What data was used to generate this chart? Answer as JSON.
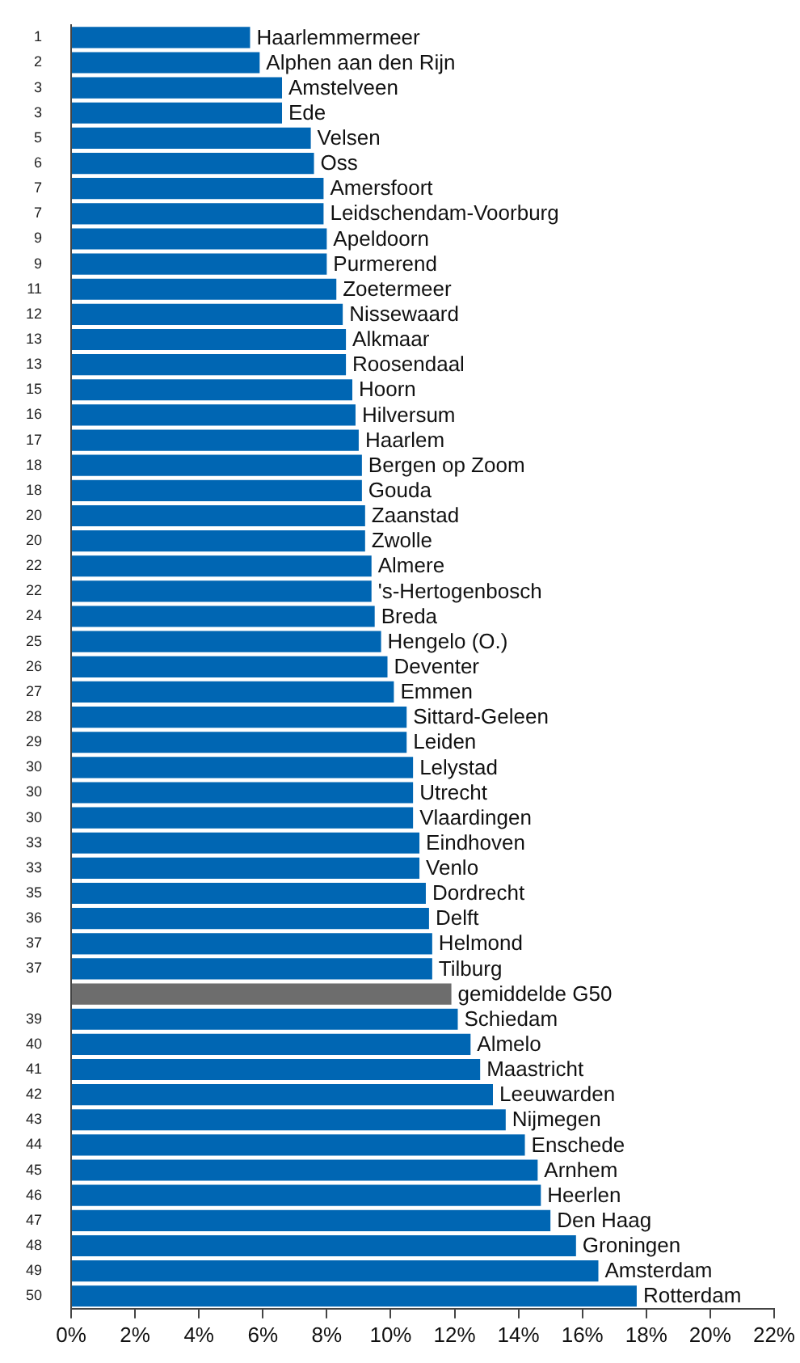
{
  "chart_data": {
    "type": "bar",
    "orientation": "horizontal",
    "categories": [
      "1",
      "2",
      "3",
      "3",
      "5",
      "6",
      "7",
      "7",
      "9",
      "9",
      "11",
      "12",
      "13",
      "13",
      "15",
      "16",
      "17",
      "18",
      "18",
      "20",
      "20",
      "22",
      "22",
      "24",
      "25",
      "26",
      "27",
      "28",
      "29",
      "30",
      "30",
      "30",
      "33",
      "33",
      "35",
      "36",
      "37",
      "37",
      null,
      "39",
      "40",
      "41",
      "42",
      "43",
      "44",
      "45",
      "46",
      "47",
      "48",
      "49",
      "50"
    ],
    "values": [
      5.6,
      5.9,
      6.6,
      6.6,
      7.5,
      7.6,
      7.9,
      7.9,
      8.0,
      8.0,
      8.3,
      8.5,
      8.6,
      8.6,
      8.8,
      8.9,
      9.0,
      9.1,
      9.1,
      9.2,
      9.2,
      9.4,
      9.4,
      9.5,
      9.7,
      9.9,
      10.1,
      10.5,
      10.5,
      10.7,
      10.7,
      10.7,
      10.9,
      10.9,
      11.1,
      11.2,
      11.3,
      11.3,
      11.9,
      12.1,
      12.5,
      12.8,
      13.2,
      13.6,
      14.2,
      14.6,
      14.7,
      15.0,
      15.8,
      16.5,
      17.7
    ],
    "value_labels": [
      "Haarlemmermeer",
      "Alphen aan den Rijn",
      "Amstelveen",
      "Ede",
      "Velsen",
      "Oss",
      "Amersfoort",
      "Leidschendam-Voorburg",
      "Apeldoorn",
      "Purmerend",
      "Zoetermeer",
      "Nissewaard",
      "Alkmaar",
      "Roosendaal",
      "Hoorn",
      "Hilversum",
      "Haarlem",
      "Bergen op Zoom",
      "Gouda",
      "Zaanstad",
      "Zwolle",
      "Almere",
      "'s-Hertogenbosch",
      "Breda",
      "Hengelo (O.)",
      "Deventer",
      "Emmen",
      "Sittard-Geleen",
      "Leiden",
      "Lelystad",
      "Utrecht",
      "Vlaardingen",
      "Eindhoven",
      "Venlo",
      "Dordrecht",
      "Delft",
      "Helmond",
      "Tilburg",
      "gemiddelde G50",
      "Schiedam",
      "Almelo",
      "Maastricht",
      "Leeuwarden",
      "Nijmegen",
      "Enschede",
      "Arnhem",
      "Heerlen",
      "Den Haag",
      "Groningen",
      "Amsterdam",
      "Rotterdam"
    ],
    "colors": [
      "#0066b3",
      "#0066b3",
      "#0066b3",
      "#0066b3",
      "#0066b3",
      "#0066b3",
      "#0066b3",
      "#0066b3",
      "#0066b3",
      "#0066b3",
      "#0066b3",
      "#0066b3",
      "#0066b3",
      "#0066b3",
      "#0066b3",
      "#0066b3",
      "#0066b3",
      "#0066b3",
      "#0066b3",
      "#0066b3",
      "#0066b3",
      "#0066b3",
      "#0066b3",
      "#0066b3",
      "#0066b3",
      "#0066b3",
      "#0066b3",
      "#0066b3",
      "#0066b3",
      "#0066b3",
      "#0066b3",
      "#0066b3",
      "#0066b3",
      "#0066b3",
      "#0066b3",
      "#0066b3",
      "#0066b3",
      "#0066b3",
      "#6d6d6d",
      "#0066b3",
      "#0066b3",
      "#0066b3",
      "#0066b3",
      "#0066b3",
      "#0066b3",
      "#0066b3",
      "#0066b3",
      "#0066b3",
      "#0066b3",
      "#0066b3",
      "#0066b3"
    ],
    "xlim": [
      0,
      22
    ],
    "xticks": [
      {
        "value": 0,
        "label": "0%"
      },
      {
        "value": 2,
        "label": "2%"
      },
      {
        "value": 4,
        "label": "4%"
      },
      {
        "value": 6,
        "label": "6%"
      },
      {
        "value": 8,
        "label": "8%"
      },
      {
        "value": 10,
        "label": "10%"
      },
      {
        "value": 12,
        "label": "12%"
      },
      {
        "value": 14,
        "label": "14%"
      },
      {
        "value": 16,
        "label": "16%"
      },
      {
        "value": 18,
        "label": "18%"
      },
      {
        "value": 20,
        "label": "20%"
      },
      {
        "value": 22,
        "label": "22%"
      }
    ],
    "grid": false,
    "legend": false
  }
}
